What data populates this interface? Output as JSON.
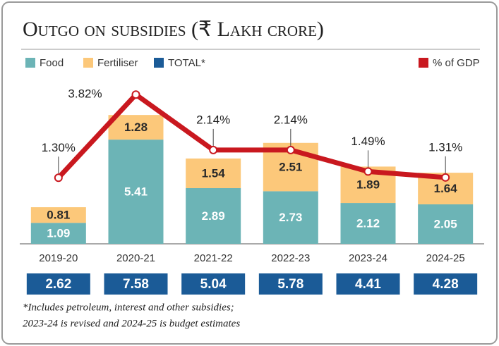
{
  "chart_data": {
    "type": "stacked-bar-line",
    "title": "Outgo on subsidies (₹ Lakh crore)",
    "categories": [
      "2019-20",
      "2020-21",
      "2021-22",
      "2022-23",
      "2023-24",
      "2024-25"
    ],
    "series": [
      {
        "name": "Food",
        "color": "#6cb4b6",
        "values": [
          1.09,
          5.41,
          2.89,
          2.73,
          2.12,
          2.05
        ]
      },
      {
        "name": "Fertiliser",
        "color": "#fcc87a",
        "values": [
          0.81,
          1.28,
          1.54,
          2.51,
          1.89,
          1.64
        ]
      },
      {
        "name": "TOTAL*",
        "color": "#1b5b97",
        "values": [
          2.62,
          7.58,
          5.04,
          5.78,
          4.41,
          4.28
        ]
      },
      {
        "name": "% of GDP",
        "color": "#c9181f",
        "axis": "y2",
        "values": [
          1.3,
          3.82,
          2.14,
          2.14,
          1.49,
          1.31
        ],
        "value_labels": [
          "1.30%",
          "3.82%",
          "2.14%",
          "2.14%",
          "1.49%",
          "1.31%"
        ]
      }
    ],
    "ylim": [
      0,
      9
    ],
    "y2lim": [
      -0.7,
      4.55
    ],
    "footnote": [
      "*Includes petroleum, interest and other subsidies;",
      "2023-24 is revised and 2024-25 is budget estimates"
    ]
  }
}
